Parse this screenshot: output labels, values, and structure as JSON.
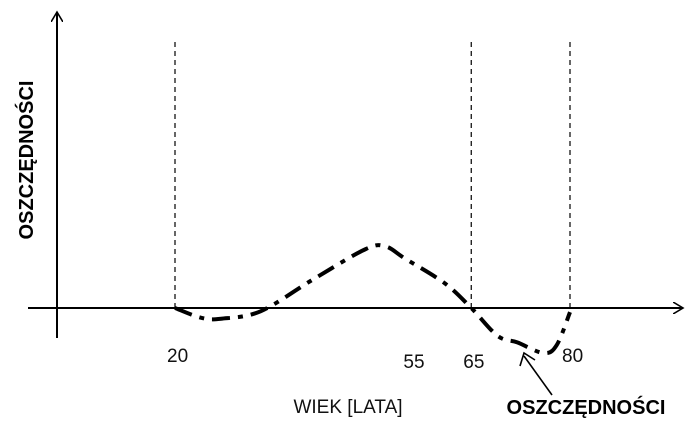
{
  "chart_data": {
    "type": "line",
    "ylabel": "OSZCZĘDNOŚCI",
    "xlabel": "WIEK [LATA]",
    "xticks": [
      "20",
      "55",
      "65",
      "80"
    ],
    "reference_lines_x": [
      20,
      65,
      80
    ],
    "series": [
      {
        "line_style": "dash-dot",
        "x": [
          20,
          24,
          27,
          33,
          41,
          49,
          52,
          55,
          61,
          65,
          69,
          72,
          76,
          78,
          80
        ],
        "y": [
          0,
          -0.12,
          -0.13,
          -0.04,
          0.35,
          0.72,
          0.75,
          0.6,
          0.3,
          0,
          -0.34,
          -0.42,
          -0.55,
          -0.45,
          -0.05
        ]
      }
    ],
    "annotations": [
      {
        "text": "OSZCZĘDNOŚCI",
        "points_to": "negative savings after age 65"
      }
    ],
    "grid": false
  }
}
